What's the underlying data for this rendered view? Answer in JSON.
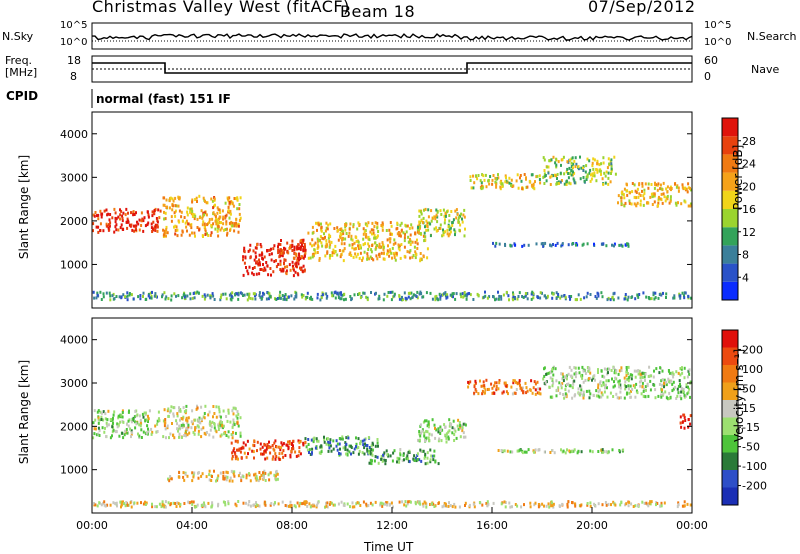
{
  "header": {
    "radar_title": "Christmas Valley West (fitACF)",
    "beam_title": "Beam 18",
    "date_title": "07/Sep/2012"
  },
  "info_panels": {
    "nsky_label": "N.Sky",
    "nsearch_label": "N.Search",
    "noise_ytick_top": "10^5",
    "noise_ytick_bottom": "10^0",
    "freq_label_line1": "Freq.",
    "freq_label_line2": "[MHz]",
    "freq_ytick_top": "18",
    "freq_ytick_bottom": "8",
    "nave_label": "Nave",
    "nave_ytick_top": "60",
    "nave_ytick_bottom": "0",
    "cpid_label": "CPID",
    "cpid_value": "normal (fast) 151 IF"
  },
  "chart_data": [
    {
      "type": "heatmap",
      "name": "power",
      "ylabel": "Slant Range [km]",
      "ylim": [
        0,
        4500
      ],
      "yticks": [
        1000,
        2000,
        3000,
        4000
      ],
      "xlim": [
        0,
        24
      ],
      "colorbar": {
        "label": "Power [dB]",
        "ticks": [
          "4",
          "8",
          "12",
          "16",
          "20",
          "24",
          "28"
        ],
        "colors": [
          "#0a2cff",
          "#2a52c8",
          "#3b7f9a",
          "#33a35a",
          "#9bd42f",
          "#f0d41a",
          "#f5a21a",
          "#f07a12",
          "#e8420e",
          "#e0130b"
        ]
      },
      "features": [
        {
          "t0": 0.0,
          "t1": 2.8,
          "r0": 1700,
          "r1": 2300,
          "level": 0.92
        },
        {
          "t0": 2.8,
          "t1": 6.0,
          "r0": 1600,
          "r1": 2600,
          "level": 0.65
        },
        {
          "t0": 6.0,
          "t1": 8.6,
          "r0": 700,
          "r1": 1500,
          "level": 0.95
        },
        {
          "t0": 7.4,
          "t1": 8.6,
          "r0": 1100,
          "r1": 1600,
          "level": 0.85
        },
        {
          "t0": 8.6,
          "t1": 13.5,
          "r0": 1050,
          "r1": 2000,
          "level": 0.6
        },
        {
          "t0": 13.0,
          "t1": 15.0,
          "r0": 1600,
          "r1": 2300,
          "level": 0.5
        },
        {
          "t0": 15.0,
          "t1": 18.0,
          "r0": 2700,
          "r1": 3100,
          "level": 0.55
        },
        {
          "t0": 18.0,
          "t1": 21.0,
          "r0": 2800,
          "r1": 3500,
          "level": 0.45
        },
        {
          "t0": 21.0,
          "t1": 24.0,
          "r0": 2300,
          "r1": 2900,
          "level": 0.6
        },
        {
          "t0": 16.0,
          "t1": 21.5,
          "r0": 1380,
          "r1": 1520,
          "level": 0.2
        },
        {
          "t0": 0.0,
          "t1": 24.0,
          "r0": 150,
          "r1": 400,
          "level": 0.3
        }
      ]
    },
    {
      "type": "heatmap",
      "name": "velocity",
      "ylabel": "Slant Range [km]",
      "xlabel": "Time UT",
      "ylim": [
        0,
        4500
      ],
      "yticks": [
        1000,
        2000,
        3000,
        4000
      ],
      "xlim": [
        0,
        24
      ],
      "xticks": [
        "00:00",
        "04:00",
        "08:00",
        "12:00",
        "16:00",
        "20:00",
        "00:00"
      ],
      "colorbar": {
        "label": "Velocity [m s⁻¹]",
        "ticks": [
          "200",
          "100",
          "50",
          "15",
          "-15",
          "-50",
          "-100",
          "-200"
        ],
        "colors": [
          "#1b2fb5",
          "#2e4fc8",
          "#2a7a38",
          "#4ec43a",
          "#9ce070",
          "#c8c8c0",
          "#f0a01a",
          "#f07a12",
          "#ec4a10",
          "#e0100b"
        ]
      },
      "features": [
        {
          "t0": 0.0,
          "t1": 2.8,
          "r0": 1700,
          "r1": 2400,
          "level": 0.45
        },
        {
          "t0": 2.8,
          "t1": 6.0,
          "r0": 1700,
          "r1": 2500,
          "level": 0.55
        },
        {
          "t0": 5.5,
          "t1": 8.6,
          "r0": 1200,
          "r1": 1700,
          "level": 0.85
        },
        {
          "t0": 3.0,
          "t1": 7.5,
          "r0": 700,
          "r1": 1000,
          "level": 0.6
        },
        {
          "t0": 8.5,
          "t1": 11.5,
          "r0": 1300,
          "r1": 1800,
          "level": 0.3
        },
        {
          "t0": 11.0,
          "t1": 14.0,
          "r0": 1100,
          "r1": 1500,
          "level": 0.35
        },
        {
          "t0": 13.0,
          "t1": 15.0,
          "r0": 1600,
          "r1": 2200,
          "level": 0.45
        },
        {
          "t0": 15.0,
          "t1": 18.0,
          "r0": 2700,
          "r1": 3100,
          "level": 0.75
        },
        {
          "t0": 18.0,
          "t1": 24.0,
          "r0": 2600,
          "r1": 3400,
          "level": 0.45
        },
        {
          "t0": 23.5,
          "t1": 24.0,
          "r0": 1900,
          "r1": 2300,
          "level": 0.95
        },
        {
          "t0": 16.0,
          "t1": 21.5,
          "r0": 1350,
          "r1": 1500,
          "level": 0.45
        },
        {
          "t0": 0.0,
          "t1": 24.0,
          "r0": 100,
          "r1": 300,
          "level": 0.6
        }
      ]
    }
  ]
}
